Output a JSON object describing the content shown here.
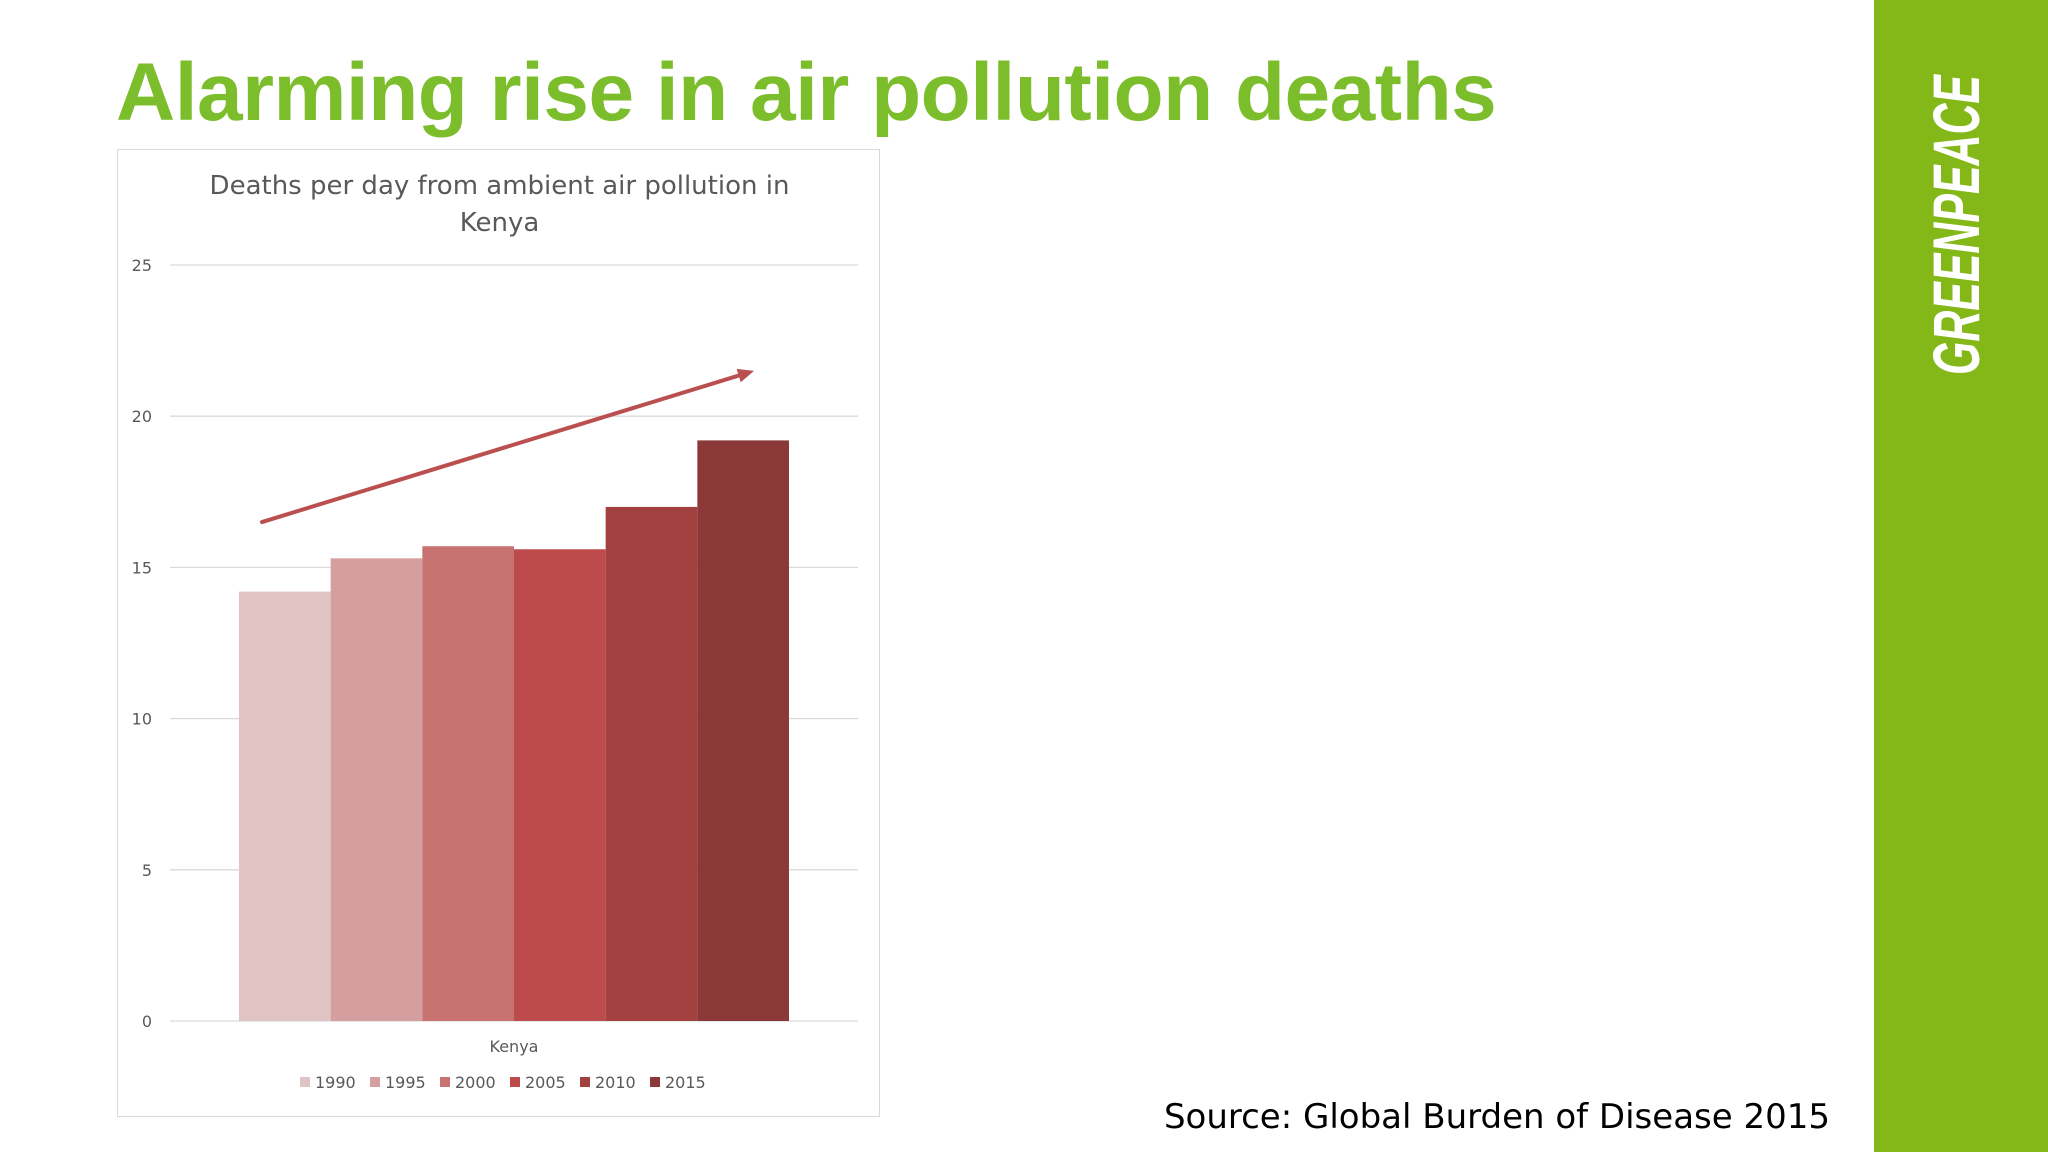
{
  "slide": {
    "title": "Alarming rise in air pollution deaths",
    "source": "Source: Global Burden of Disease 2015"
  },
  "brand": {
    "logo_text": "GREENPEACE",
    "green": "#7bbd2b",
    "sidebar_green": "#84b819"
  },
  "chart_data": {
    "type": "bar",
    "title_lines": [
      "Deaths per day from ambient air pollution in",
      "Kenya"
    ],
    "categories": [
      "Kenya"
    ],
    "series": [
      {
        "name": "1990",
        "values": [
          14.2
        ],
        "color": "#e0c3c3"
      },
      {
        "name": "1995",
        "values": [
          15.3
        ],
        "color": "#d59f9f"
      },
      {
        "name": "2000",
        "values": [
          15.7
        ],
        "color": "#c87272"
      },
      {
        "name": "2005",
        "values": [
          15.6
        ],
        "color": "#bd4b4b"
      },
      {
        "name": "2010",
        "values": [
          17.0
        ],
        "color": "#a34141"
      },
      {
        "name": "2015",
        "values": [
          19.2
        ],
        "color": "#8b3838"
      }
    ],
    "ylim": [
      0,
      25
    ],
    "yticks": [
      0,
      5,
      10,
      15,
      20,
      25
    ],
    "grid": true,
    "legend_position": "bottom",
    "trend_arrow": {
      "from": 16.5,
      "to": 21.5,
      "color": "#b94f4f"
    }
  }
}
